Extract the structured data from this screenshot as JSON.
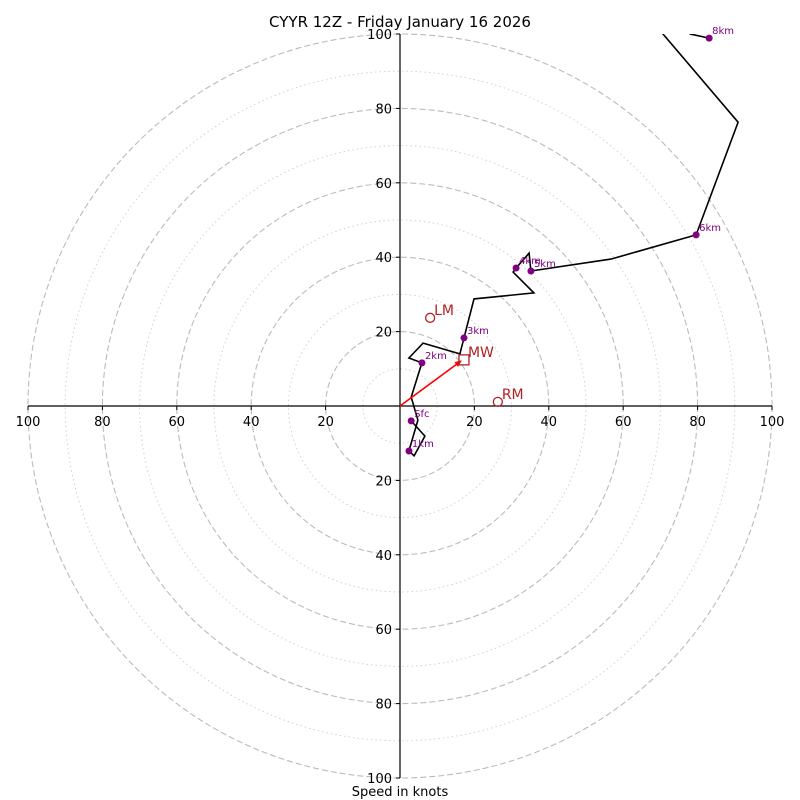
{
  "chart_data": {
    "type": "line",
    "subtype": "hodograph",
    "title": "CYYR 12Z - Friday January 16 2026",
    "xlabel": "Speed in knots",
    "ylabel": "",
    "range_knots": 100,
    "ring_step_major": 20,
    "ring_step_minor": 10,
    "x_tick_labels": [
      "100",
      "80",
      "60",
      "40",
      "20",
      "20",
      "40",
      "60",
      "80",
      "100"
    ],
    "x_tick_values": [
      -100,
      -80,
      -60,
      -40,
      -20,
      20,
      40,
      60,
      80,
      100
    ],
    "y_tick_labels": [
      "20",
      "40",
      "60",
      "80",
      "100",
      "20",
      "40",
      "60",
      "80",
      "100"
    ],
    "y_tick_values": [
      20,
      40,
      60,
      80,
      100,
      -20,
      -40,
      -60,
      -80,
      -100
    ],
    "grid": true,
    "colors": {
      "trace": "#000000",
      "levels": "#800080",
      "markers": "#b22222",
      "mean_wind_vector": "#ff0000",
      "grid": "#bbbbbb"
    },
    "trace": {
      "u": [
        3.0,
        6.7,
        3.8,
        2.4,
        4.8,
        3.0,
        5.9,
        2.4,
        6.2,
        16.1,
        17.2,
        19.9,
        36.0,
        30.4,
        31.2,
        34.7,
        35.2,
        56.7,
        79.6,
        90.9,
        70.7,
        75.5,
        78.0,
        83.1
      ],
      "v": [
        -4.0,
        -8.1,
        -13.4,
        -12.1,
        -3.8,
        2.4,
        11.6,
        12.9,
        16.9,
        14.0,
        18.3,
        28.8,
        30.4,
        36.0,
        37.1,
        41.1,
        36.3,
        39.5,
        46.0,
        76.3,
        100.0,
        104.0,
        100.0,
        98.9
      ]
    },
    "levels": [
      {
        "label": "Sfc",
        "u": 3.0,
        "v": -4.0
      },
      {
        "label": "1km",
        "u": 2.4,
        "v": -12.1
      },
      {
        "label": "2km",
        "u": 5.9,
        "v": 11.6
      },
      {
        "label": "3km",
        "u": 17.2,
        "v": 18.3
      },
      {
        "label": "4km",
        "u": 31.2,
        "v": 37.1
      },
      {
        "label": "5km",
        "u": 35.2,
        "v": 36.3
      },
      {
        "label": "6km",
        "u": 79.6,
        "v": 46.0
      },
      {
        "label": "8km",
        "u": 83.1,
        "v": 98.9
      }
    ],
    "markers": [
      {
        "label": "LM",
        "shape": "circle",
        "u": 8.1,
        "v": 23.7
      },
      {
        "label": "RM",
        "shape": "circle",
        "u": 26.3,
        "v": 1.1
      },
      {
        "label": "MW",
        "shape": "square",
        "u": 17.2,
        "v": 12.4
      }
    ],
    "mean_wind_arrow": {
      "u": 16.4,
      "v": 12.1
    }
  }
}
